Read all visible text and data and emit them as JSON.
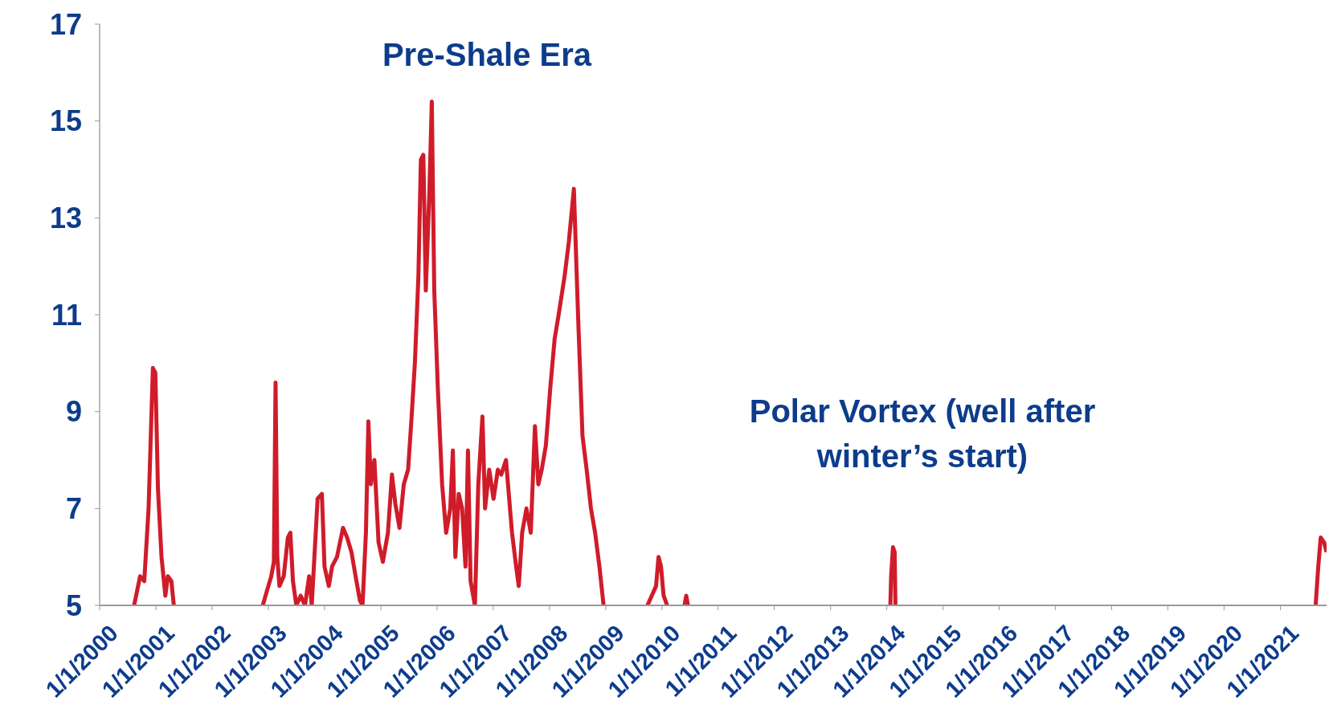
{
  "chart_data": {
    "type": "line",
    "annotations": [
      "Pre-Shale Era",
      "Polar Vortex (well after winter’s start)"
    ],
    "x": [
      "2000-08-12",
      "2000-09-20",
      "2000-10-17",
      "2000-11-14",
      "2000-12-12",
      "2000-12-28",
      "2001-01-14",
      "2001-02-06",
      "2001-03-03",
      "2001-03-19",
      "2001-04-11",
      "2001-04-27",
      "2002-01-01",
      "2002-11-26",
      "2002-12-23",
      "2003-01-20",
      "2003-02-06",
      "2003-02-17",
      "2003-02-28",
      "2003-03-14",
      "2003-04-11",
      "2003-05-08",
      "2003-05-24",
      "2003-06-10",
      "2003-07-02",
      "2003-07-30",
      "2003-08-27",
      "2003-09-23",
      "2003-10-10",
      "2003-11-17",
      "2003-12-15",
      "2004-01-01",
      "2004-01-29",
      "2004-02-19",
      "2004-03-22",
      "2004-04-30",
      "2004-05-27",
      "2004-06-24",
      "2004-07-21",
      "2004-08-18",
      "2004-09-04",
      "2004-09-26",
      "2004-10-12",
      "2004-10-28",
      "2004-11-20",
      "2004-12-17",
      "2005-01-14",
      "2005-02-16",
      "2005-03-14",
      "2005-04-05",
      "2005-05-02",
      "2005-05-30",
      "2005-06-27",
      "2005-07-18",
      "2005-08-10",
      "2005-09-02",
      "2005-09-18",
      "2005-10-04",
      "2005-10-20",
      "2005-11-12",
      "2005-11-28",
      "2005-12-14",
      "2006-01-06",
      "2006-02-03",
      "2006-03-01",
      "2006-03-28",
      "2006-04-14",
      "2006-04-30",
      "2006-05-22",
      "2006-06-13",
      "2006-07-05",
      "2006-07-21",
      "2006-08-07",
      "2006-09-04",
      "2006-09-26",
      "2006-10-23",
      "2006-11-09",
      "2006-12-06",
      "2007-01-03",
      "2007-01-31",
      "2007-02-22",
      "2007-03-25",
      "2007-05-03",
      "2007-05-30",
      "2007-06-16",
      "2007-07-08",
      "2007-08-05",
      "2007-09-02",
      "2007-09-29",
      "2007-10-21",
      "2007-11-12",
      "2007-12-09",
      "2008-01-07",
      "2008-02-04",
      "2008-03-01",
      "2008-04-09",
      "2008-05-06",
      "2008-06-08",
      "2008-07-05",
      "2008-08-03",
      "2008-08-30",
      "2008-09-27",
      "2008-10-24",
      "2008-11-21",
      "2008-12-18",
      "2009-06-01",
      "2009-09-29",
      "2009-10-27",
      "2009-11-24",
      "2009-12-10",
      "2009-12-26",
      "2010-01-12",
      "2010-02-04",
      "2010-04-01",
      "2010-05-28",
      "2010-06-08",
      "2010-06-19",
      "2012-01-01",
      "2014-01-24",
      "2014-01-29",
      "2014-02-10",
      "2014-02-21",
      "2014-02-26",
      "2018-01-01",
      "2021-08-18",
      "2021-09-04",
      "2021-09-20",
      "2021-10-12",
      "2021-10-28"
    ],
    "series": [
      {
        "color": "#d01c2a",
        "values": [
          5,
          5.6,
          5.5,
          7,
          9.9,
          9.8,
          7.4,
          6,
          5.2,
          5.6,
          5.5,
          5,
          null,
          5,
          5.3,
          5.6,
          5.9,
          9.6,
          6,
          5.4,
          5.6,
          6.4,
          6.5,
          5.5,
          5,
          5.2,
          5,
          5.6,
          5,
          7.2,
          7.3,
          5.8,
          5.4,
          5.8,
          6,
          6.6,
          6.4,
          6.1,
          5.6,
          5.1,
          5,
          6.5,
          8.8,
          7.5,
          8,
          6.3,
          5.9,
          6.5,
          7.7,
          7.1,
          6.6,
          7.5,
          7.8,
          8.8,
          10,
          11.8,
          14.2,
          14.3,
          11.5,
          13.5,
          15.4,
          11.5,
          9.5,
          7.5,
          6.5,
          7,
          8.2,
          6,
          7.3,
          7,
          5.8,
          8.2,
          5.5,
          5,
          7.5,
          8.9,
          7,
          7.8,
          7.2,
          7.8,
          7.7,
          8,
          6.5,
          5.8,
          5.4,
          6.5,
          7,
          6.5,
          8.7,
          7.5,
          7.8,
          8.3,
          9.5,
          10.5,
          11,
          11.8,
          12.5,
          13.6,
          11,
          8.5,
          7.8,
          7,
          6.5,
          5.8,
          5,
          null,
          5,
          5.2,
          5.4,
          6,
          5.8,
          5.2,
          5,
          null,
          5,
          5.2,
          5,
          null,
          5,
          5.6,
          6.2,
          6.1,
          5,
          null,
          5,
          5.8,
          6.4,
          6.3,
          6.1
        ]
      }
    ],
    "xlim": [
      "2000-01-01",
      "2021-10-28"
    ],
    "xticks": [
      {
        "value": "2000-01-01",
        "label": "1/1/2000"
      },
      {
        "value": "2001-01-01",
        "label": "1/1/2001"
      },
      {
        "value": "2002-01-01",
        "label": "1/1/2002"
      },
      {
        "value": "2003-01-01",
        "label": "1/1/2003"
      },
      {
        "value": "2004-01-01",
        "label": "1/1/2004"
      },
      {
        "value": "2005-01-01",
        "label": "1/1/2005"
      },
      {
        "value": "2006-01-01",
        "label": "1/1/2006"
      },
      {
        "value": "2007-01-01",
        "label": "1/1/2007"
      },
      {
        "value": "2008-01-01",
        "label": "1/1/2008"
      },
      {
        "value": "2009-01-01",
        "label": "1/1/2009"
      },
      {
        "value": "2010-01-01",
        "label": "1/1/2010"
      },
      {
        "value": "2011-01-01",
        "label": "1/1/2011"
      },
      {
        "value": "2012-01-01",
        "label": "1/1/2012"
      },
      {
        "value": "2013-01-01",
        "label": "1/1/2013"
      },
      {
        "value": "2014-01-01",
        "label": "1/1/2014"
      },
      {
        "value": "2015-01-01",
        "label": "1/1/2015"
      },
      {
        "value": "2016-01-01",
        "label": "1/1/2016"
      },
      {
        "value": "2017-01-01",
        "label": "1/1/2017"
      },
      {
        "value": "2018-01-01",
        "label": "1/1/2018"
      },
      {
        "value": "2019-01-01",
        "label": "1/1/2019"
      },
      {
        "value": "2020-01-01",
        "label": "1/1/2020"
      },
      {
        "value": "2021-01-01",
        "label": "1/1/2021"
      }
    ],
    "ylim": [
      5,
      17
    ],
    "yticks": [
      5,
      7,
      9,
      11,
      13,
      15,
      17
    ],
    "grid": false,
    "legend": false,
    "marker": "none",
    "line_style": "solid"
  }
}
